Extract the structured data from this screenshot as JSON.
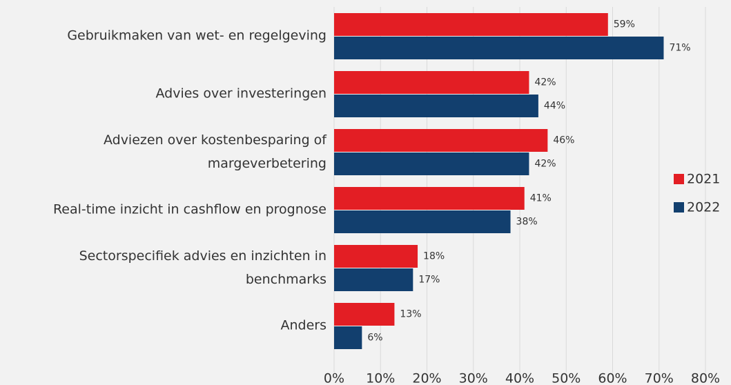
{
  "chart_data": {
    "type": "hbar",
    "categories": [
      "Gebruikmaken van wet- en regelgeving",
      "Advies over investeringen",
      "Adviezen over kostenbesparing of margeverbetering",
      "Real-time inzicht in cashflow en prognose",
      "Sectorspecifiek advies en inzichten in benchmarks",
      "Anders"
    ],
    "series": [
      {
        "name": "2021",
        "color": "#e31e24",
        "values": [
          59,
          42,
          46,
          41,
          18,
          13
        ],
        "value_labels": [
          "59%",
          "42%",
          "46%",
          "41%",
          "18%",
          "13%"
        ]
      },
      {
        "name": "2022",
        "color": "#123f6e",
        "values": [
          71,
          44,
          42,
          38,
          17,
          6
        ],
        "value_labels": [
          "71%",
          "44%",
          "42%",
          "38%",
          "17%",
          "6%"
        ]
      }
    ],
    "xlim": [
      0,
      80
    ],
    "xticks": [
      {
        "value": 0,
        "label": "0%"
      },
      {
        "value": 10,
        "label": "10%"
      },
      {
        "value": 20,
        "label": "20%"
      },
      {
        "value": 30,
        "label": "30%"
      },
      {
        "value": 40,
        "label": "40%"
      },
      {
        "value": 50,
        "label": "50%"
      },
      {
        "value": 60,
        "label": "60%"
      },
      {
        "value": 70,
        "label": "70%"
      },
      {
        "value": 80,
        "label": "80%"
      }
    ],
    "grid": true,
    "legend": "right"
  }
}
